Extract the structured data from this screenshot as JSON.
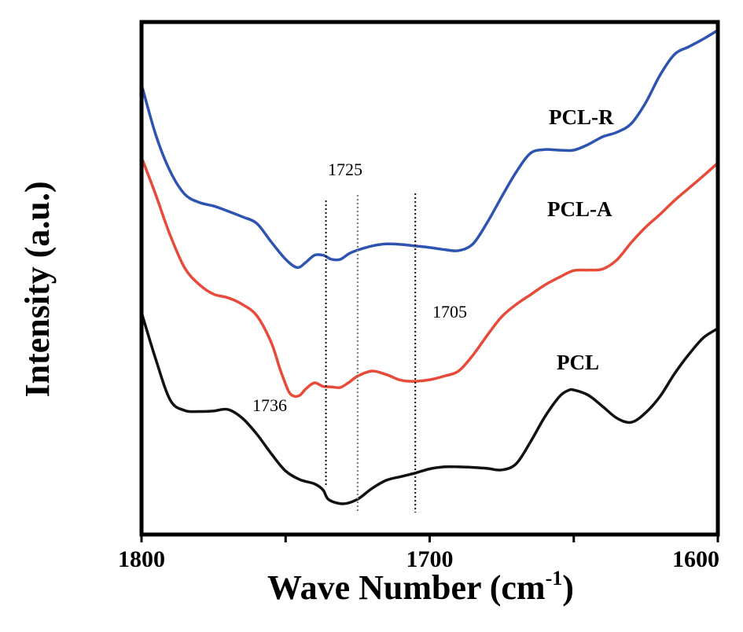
{
  "chart_data": {
    "type": "line",
    "xlabel": "Wave Number (cm",
    "xlabel_sup": "-1",
    "xlabel_close": ")",
    "ylabel": "Intensity (a.u.)",
    "xlim": [
      1800,
      1600
    ],
    "x_reversed": true,
    "ylim": [
      0,
      1
    ],
    "yticks_shown": false,
    "xticks": [
      1800,
      1750,
      1700,
      1650,
      1600
    ],
    "xtick_labels": [
      "1800",
      "",
      "1700",
      "",
      "1600"
    ],
    "grid": false,
    "series": [
      {
        "name": "PCL-R",
        "color": "#2e54b2",
        "points": [
          [
            1800,
            0.878
          ],
          [
            1795,
            0.779
          ],
          [
            1790,
            0.708
          ],
          [
            1785,
            0.664
          ],
          [
            1780,
            0.648
          ],
          [
            1775,
            0.641
          ],
          [
            1770,
            0.631
          ],
          [
            1765,
            0.62
          ],
          [
            1760,
            0.607
          ],
          [
            1755,
            0.571
          ],
          [
            1750,
            0.537
          ],
          [
            1746,
            0.521
          ],
          [
            1743,
            0.531
          ],
          [
            1740,
            0.545
          ],
          [
            1737,
            0.545
          ],
          [
            1734,
            0.537
          ],
          [
            1731,
            0.537
          ],
          [
            1728,
            0.548
          ],
          [
            1725,
            0.555
          ],
          [
            1720,
            0.563
          ],
          [
            1715,
            0.567
          ],
          [
            1710,
            0.566
          ],
          [
            1705,
            0.563
          ],
          [
            1700,
            0.56
          ],
          [
            1695,
            0.556
          ],
          [
            1690,
            0.554
          ],
          [
            1685,
            0.567
          ],
          [
            1680,
            0.609
          ],
          [
            1675,
            0.659
          ],
          [
            1670,
            0.707
          ],
          [
            1665,
            0.744
          ],
          [
            1660,
            0.751
          ],
          [
            1655,
            0.75
          ],
          [
            1650,
            0.75
          ],
          [
            1645,
            0.761
          ],
          [
            1640,
            0.776
          ],
          [
            1635,
            0.785
          ],
          [
            1630,
            0.802
          ],
          [
            1625,
            0.843
          ],
          [
            1620,
            0.897
          ],
          [
            1615,
            0.937
          ],
          [
            1610,
            0.952
          ],
          [
            1605,
            0.967
          ],
          [
            1600,
            0.984
          ]
        ]
      },
      {
        "name": "PCL-A",
        "color": "#e84a3a",
        "points": [
          [
            1800,
            0.736
          ],
          [
            1795,
            0.662
          ],
          [
            1790,
            0.583
          ],
          [
            1785,
            0.52
          ],
          [
            1780,
            0.488
          ],
          [
            1775,
            0.469
          ],
          [
            1770,
            0.462
          ],
          [
            1765,
            0.449
          ],
          [
            1760,
            0.427
          ],
          [
            1755,
            0.375
          ],
          [
            1752,
            0.324
          ],
          [
            1749,
            0.28
          ],
          [
            1747,
            0.27
          ],
          [
            1745,
            0.272
          ],
          [
            1743,
            0.284
          ],
          [
            1740,
            0.296
          ],
          [
            1737,
            0.289
          ],
          [
            1734,
            0.288
          ],
          [
            1731,
            0.287
          ],
          [
            1728,
            0.297
          ],
          [
            1725,
            0.309
          ],
          [
            1720,
            0.319
          ],
          [
            1715,
            0.312
          ],
          [
            1710,
            0.301
          ],
          [
            1705,
            0.299
          ],
          [
            1700,
            0.302
          ],
          [
            1695,
            0.309
          ],
          [
            1690,
            0.319
          ],
          [
            1685,
            0.35
          ],
          [
            1680,
            0.389
          ],
          [
            1675,
            0.425
          ],
          [
            1670,
            0.449
          ],
          [
            1665,
            0.468
          ],
          [
            1660,
            0.487
          ],
          [
            1655,
            0.502
          ],
          [
            1650,
            0.515
          ],
          [
            1645,
            0.516
          ],
          [
            1640,
            0.518
          ],
          [
            1635,
            0.536
          ],
          [
            1630,
            0.57
          ],
          [
            1625,
            0.6
          ],
          [
            1620,
            0.625
          ],
          [
            1615,
            0.652
          ],
          [
            1610,
            0.676
          ],
          [
            1605,
            0.7
          ],
          [
            1600,
            0.725
          ]
        ]
      },
      {
        "name": "PCL",
        "color": "#111111",
        "points": [
          [
            1800,
            0.433
          ],
          [
            1795,
            0.341
          ],
          [
            1790,
            0.262
          ],
          [
            1785,
            0.242
          ],
          [
            1780,
            0.24
          ],
          [
            1775,
            0.241
          ],
          [
            1770,
            0.244
          ],
          [
            1765,
            0.227
          ],
          [
            1760,
            0.196
          ],
          [
            1755,
            0.158
          ],
          [
            1750,
            0.124
          ],
          [
            1745,
            0.107
          ],
          [
            1740,
            0.099
          ],
          [
            1737,
            0.087
          ],
          [
            1735,
            0.068
          ],
          [
            1730,
            0.06
          ],
          [
            1725,
            0.069
          ],
          [
            1720,
            0.09
          ],
          [
            1715,
            0.106
          ],
          [
            1710,
            0.113
          ],
          [
            1705,
            0.12
          ],
          [
            1700,
            0.128
          ],
          [
            1695,
            0.132
          ],
          [
            1690,
            0.132
          ],
          [
            1685,
            0.131
          ],
          [
            1680,
            0.129
          ],
          [
            1675,
            0.126
          ],
          [
            1670,
            0.138
          ],
          [
            1665,
            0.181
          ],
          [
            1660,
            0.23
          ],
          [
            1655,
            0.269
          ],
          [
            1652,
            0.281
          ],
          [
            1650,
            0.282
          ],
          [
            1645,
            0.272
          ],
          [
            1640,
            0.25
          ],
          [
            1635,
            0.227
          ],
          [
            1630,
            0.219
          ],
          [
            1625,
            0.238
          ],
          [
            1620,
            0.27
          ],
          [
            1615,
            0.314
          ],
          [
            1610,
            0.352
          ],
          [
            1605,
            0.384
          ],
          [
            1600,
            0.402
          ]
        ]
      }
    ],
    "reference_lines": [
      {
        "x": 1736,
        "label": "1736"
      },
      {
        "x": 1725,
        "label": "1725"
      },
      {
        "x": 1705,
        "label": "1705"
      }
    ]
  }
}
